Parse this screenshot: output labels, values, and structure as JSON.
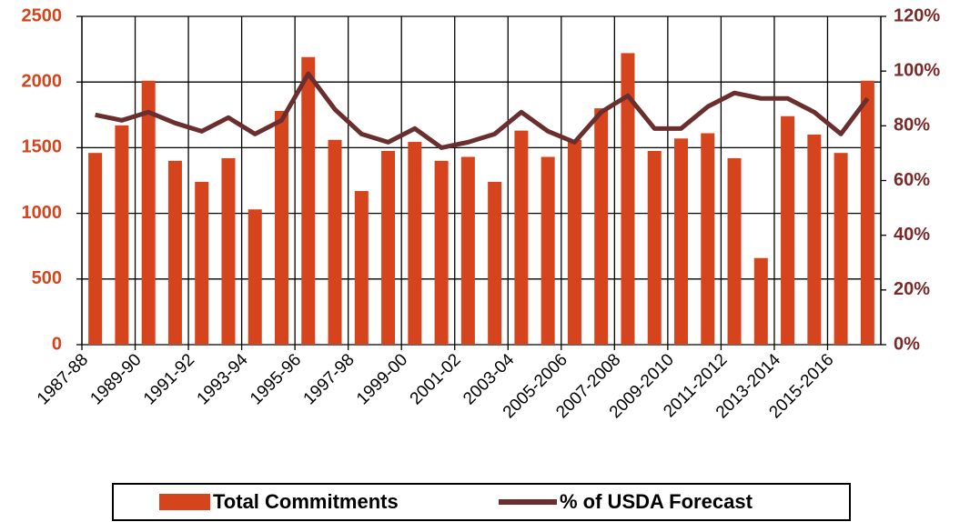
{
  "chart_data": {
    "type": "bar_line",
    "categories": [
      "1987-88",
      null,
      "1989-90",
      null,
      "1991-92",
      null,
      "1993-94",
      null,
      "1995-96",
      null,
      "1997-98",
      null,
      "1999-00",
      null,
      "2001-02",
      null,
      "2003-04",
      null,
      "2005-2006",
      null,
      "2007-2008",
      null,
      "2009-2010",
      null,
      "2011-2012",
      null,
      "2013-2014",
      null,
      "2015-2016",
      null
    ],
    "series": [
      {
        "name": "Total Commitments",
        "type": "bar",
        "color": "#d5441c",
        "values": [
          1460,
          1670,
          2010,
          1400,
          1240,
          1420,
          1030,
          1780,
          2190,
          1560,
          1170,
          1475,
          1544,
          1400,
          1430,
          1240,
          1630,
          1430,
          1560,
          1800,
          2220,
          1475,
          1570,
          1610,
          1420,
          660,
          1740,
          1600,
          1460,
          2010
        ]
      },
      {
        "name": "% of USDA Forecast",
        "type": "line",
        "axis": "y2",
        "color": "#6b2e2e",
        "values": [
          84,
          82,
          85,
          81,
          78,
          83,
          77,
          82,
          99,
          86,
          77,
          74,
          79,
          72,
          74,
          77,
          85,
          78,
          74,
          85,
          91,
          79,
          79,
          87,
          92,
          90,
          90,
          85,
          77,
          90
        ]
      }
    ],
    "ylim": [
      0,
      2500
    ],
    "yticks": [
      0,
      500,
      1000,
      1500,
      2000,
      2500
    ],
    "y2lim": [
      0,
      120
    ],
    "y2ticks": [
      {
        "value": 0,
        "label": "0%"
      },
      {
        "value": 20,
        "label": "20%"
      },
      {
        "value": 40,
        "label": "40%"
      },
      {
        "value": 60,
        "label": "60%"
      },
      {
        "value": 80,
        "label": "80%"
      },
      {
        "value": 100,
        "label": "100%"
      },
      {
        "value": 120,
        "label": "120%"
      }
    ],
    "grid": true
  }
}
